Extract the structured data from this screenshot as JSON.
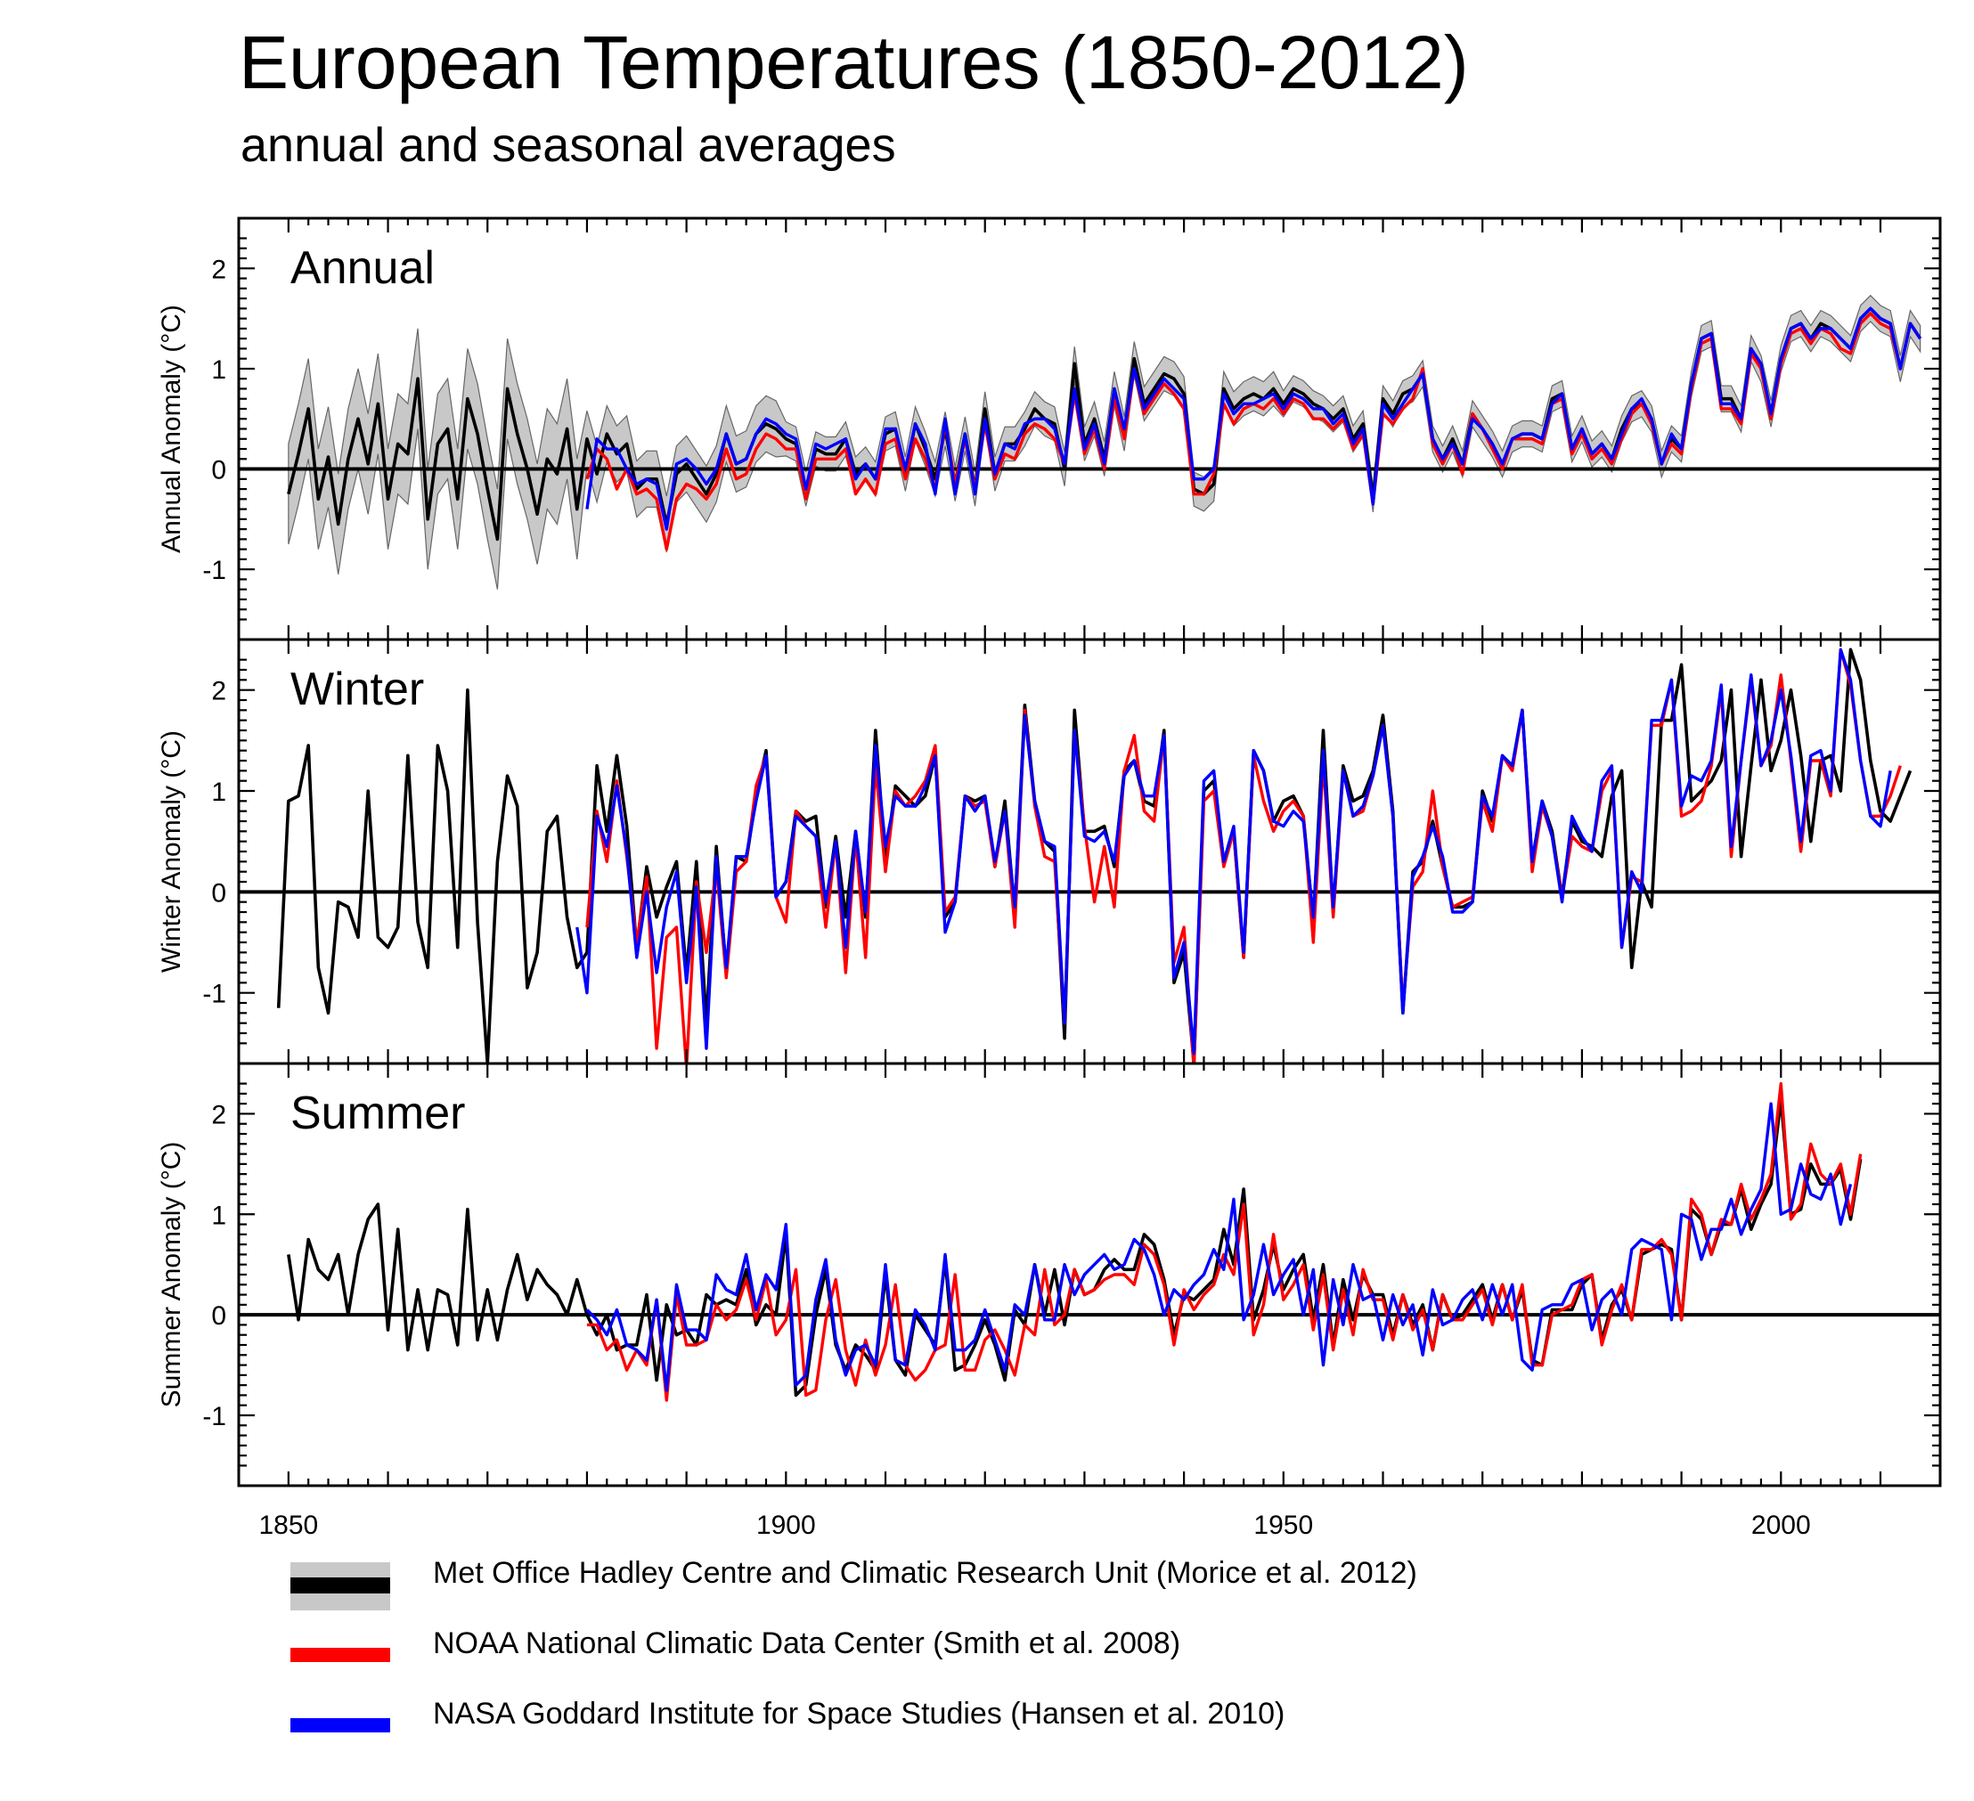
{
  "title": "European Temperatures (1850-2012)",
  "subtitle": "annual and seasonal averages",
  "colors": {
    "hadcrut": "#000000",
    "hadcrut_band": "#c8c8c8",
    "noaa": "#ff0000",
    "nasa": "#0000ff"
  },
  "legend": [
    {
      "key": "hadcrut",
      "label": "Met Office Hadley Centre and Climatic Research Unit (Morice et al. 2012)"
    },
    {
      "key": "noaa",
      "label": "NOAA National Climatic Data Center (Smith et al. 2008)"
    },
    {
      "key": "nasa",
      "label": "NASA Goddard Institute for Space Studies (Hansen et al. 2010)"
    }
  ],
  "chart_data": [
    {
      "type": "line",
      "panel": "Annual",
      "ylabel": "Annual Anomaly (°C)",
      "xlim": [
        1850,
        2012
      ],
      "ylim": [
        -1.7,
        2.5
      ],
      "xticks": [
        1850,
        1900,
        1950,
        2000
      ],
      "yticks": [
        -1,
        0,
        1,
        2
      ],
      "hadcrut_start": 1850,
      "hadcrut": [
        -0.25,
        0.15,
        0.6,
        -0.3,
        0.12,
        -0.55,
        0.1,
        0.5,
        0.05,
        0.65,
        -0.3,
        0.25,
        0.15,
        0.9,
        -0.5,
        0.25,
        0.4,
        -0.3,
        0.7,
        0.35,
        -0.2,
        -0.7,
        0.8,
        0.35,
        0.0,
        -0.45,
        0.1,
        -0.05,
        0.4,
        -0.4,
        0.3,
        -0.05,
        0.35,
        0.15,
        0.25,
        -0.2,
        -0.1,
        -0.1,
        -0.55,
        -0.05,
        0.05,
        -0.1,
        -0.25,
        -0.05,
        0.35,
        0.05,
        0.1,
        0.35,
        0.45,
        0.4,
        0.3,
        0.25,
        -0.2,
        0.2,
        0.15,
        0.15,
        0.3,
        -0.05,
        0.05,
        -0.1,
        0.35,
        0.4,
        -0.05,
        0.45,
        0.2,
        -0.1,
        0.4,
        -0.15,
        0.35,
        -0.2,
        0.6,
        -0.05,
        0.25,
        0.25,
        0.4,
        0.6,
        0.5,
        0.45,
        0.0,
        1.05,
        0.25,
        0.5,
        0.1,
        0.8,
        0.35,
        1.1,
        0.65,
        0.8,
        0.95,
        0.9,
        0.75,
        -0.2,
        -0.25,
        -0.15,
        0.8,
        0.6,
        0.7,
        0.75,
        0.7,
        0.8,
        0.65,
        0.8,
        0.75,
        0.65,
        0.6,
        0.5,
        0.6,
        0.3,
        0.45,
        -0.3,
        0.7,
        0.55,
        0.75,
        0.8,
        0.95,
        0.3,
        0.1,
        0.3,
        0.05,
        0.55,
        0.4,
        0.25,
        0.05,
        0.3,
        0.35,
        0.35,
        0.3,
        0.7,
        0.75,
        0.2,
        0.4,
        0.15,
        0.25,
        0.1,
        0.4,
        0.6,
        0.65,
        0.5,
        0.05,
        0.3,
        0.2,
        0.85,
        1.3,
        1.35,
        0.7,
        0.7,
        0.5,
        1.2,
        1.0,
        0.55,
        1.1,
        1.4,
        1.45,
        1.3,
        1.45,
        1.4,
        1.3,
        1.2,
        1.5,
        1.6,
        1.5,
        1.45,
        1.0,
        1.45,
        1.3
      ],
      "noaa_start": 1880,
      "noaa": [
        -0.1,
        0.2,
        0.1,
        -0.2,
        0.0,
        -0.25,
        -0.2,
        -0.3,
        -0.8,
        -0.3,
        -0.15,
        -0.2,
        -0.3,
        -0.15,
        0.2,
        -0.1,
        -0.05,
        0.2,
        0.35,
        0.3,
        0.2,
        0.2,
        -0.3,
        0.1,
        0.1,
        0.1,
        0.2,
        -0.25,
        -0.1,
        -0.25,
        0.25,
        0.3,
        -0.1,
        0.3,
        0.1,
        -0.2,
        0.45,
        -0.15,
        0.3,
        -0.2,
        0.45,
        -0.1,
        0.15,
        0.1,
        0.35,
        0.45,
        0.4,
        0.3,
        0.05,
        0.75,
        0.15,
        0.4,
        0.0,
        0.7,
        0.3,
        1.0,
        0.55,
        0.7,
        0.85,
        0.75,
        0.6,
        -0.25,
        -0.25,
        -0.05,
        0.65,
        0.45,
        0.6,
        0.65,
        0.6,
        0.7,
        0.55,
        0.7,
        0.65,
        0.5,
        0.5,
        0.4,
        0.5,
        0.2,
        0.35,
        -0.35,
        0.55,
        0.45,
        0.6,
        0.7,
        1.0,
        0.25,
        0.05,
        0.25,
        -0.05,
        0.55,
        0.4,
        0.2,
        0.0,
        0.3,
        0.3,
        0.3,
        0.25,
        0.65,
        0.7,
        0.15,
        0.35,
        0.1,
        0.2,
        0.05,
        0.3,
        0.55,
        0.65,
        0.45,
        0.05,
        0.25,
        0.15,
        0.8,
        1.25,
        1.3,
        0.6,
        0.6,
        0.45,
        1.15,
        1.0,
        0.5,
        1.05,
        1.35,
        1.4,
        1.25,
        1.4,
        1.35,
        1.2,
        1.15,
        1.45,
        1.55,
        1.45,
        1.4,
        1.0,
        1.45,
        1.3
      ],
      "nasa_start": 1880,
      "nasa": [
        -0.4,
        0.3,
        0.2,
        0.2,
        0.0,
        -0.15,
        -0.1,
        -0.15,
        -0.6,
        0.05,
        0.1,
        0.0,
        -0.15,
        0.0,
        0.35,
        0.05,
        0.1,
        0.35,
        0.5,
        0.45,
        0.35,
        0.3,
        -0.2,
        0.25,
        0.2,
        0.25,
        0.3,
        -0.1,
        0.05,
        -0.1,
        0.4,
        0.4,
        0.0,
        0.45,
        0.25,
        -0.25,
        0.5,
        -0.25,
        0.35,
        -0.25,
        0.5,
        -0.05,
        0.25,
        0.2,
        0.45,
        0.5,
        0.5,
        0.4,
        0.05,
        0.8,
        0.2,
        0.45,
        0.05,
        0.8,
        0.4,
        1.0,
        0.6,
        0.75,
        0.9,
        0.8,
        0.7,
        -0.1,
        -0.1,
        0.0,
        0.75,
        0.55,
        0.65,
        0.65,
        0.7,
        0.75,
        0.6,
        0.75,
        0.7,
        0.6,
        0.6,
        0.45,
        0.55,
        0.25,
        0.4,
        -0.35,
        0.65,
        0.5,
        0.65,
        0.8,
        0.95,
        0.3,
        0.1,
        0.25,
        0.05,
        0.5,
        0.4,
        0.25,
        0.05,
        0.3,
        0.35,
        0.35,
        0.3,
        0.65,
        0.75,
        0.2,
        0.4,
        0.15,
        0.25,
        0.1,
        0.35,
        0.6,
        0.7,
        0.5,
        0.05,
        0.35,
        0.2,
        0.85,
        1.3,
        1.35,
        0.65,
        0.65,
        0.5,
        1.2,
        1.05,
        0.55,
        1.1,
        1.4,
        1.45,
        1.3,
        1.4,
        1.4,
        1.3,
        1.2,
        1.5,
        1.6,
        1.5,
        1.45,
        1.0,
        1.45,
        1.3
      ]
    },
    {
      "type": "line",
      "panel": "Winter",
      "ylabel": "Winter Anomaly (°C)",
      "xlim": [
        1850,
        2012
      ],
      "ylim": [
        -1.7,
        2.5
      ],
      "xticks": [
        1850,
        1900,
        1950,
        2000
      ],
      "yticks": [
        -1,
        0,
        1,
        2
      ],
      "hadcrut_start": 1849,
      "hadcrut": [
        -1.15,
        0.9,
        0.95,
        1.45,
        -0.75,
        -1.2,
        -0.1,
        -0.15,
        -0.45,
        1.0,
        -0.45,
        -0.55,
        -0.35,
        1.35,
        -0.3,
        -0.75,
        1.45,
        1.0,
        -0.55,
        2.0,
        -0.3,
        -1.7,
        0.3,
        1.15,
        0.85,
        -0.95,
        -0.6,
        0.6,
        0.75,
        -0.25,
        -0.75,
        -0.6,
        1.25,
        0.6,
        1.35,
        0.65,
        -0.55,
        0.25,
        -0.25,
        0.05,
        0.3,
        -0.8,
        0.3,
        -1.3,
        0.45,
        -0.8,
        0.35,
        0.3,
        0.95,
        1.4,
        -0.05,
        0.1,
        0.8,
        0.7,
        0.75,
        -0.15,
        0.55,
        -0.25,
        0.6,
        -0.25,
        1.6,
        0.3,
        1.05,
        0.95,
        0.85,
        0.95,
        1.35,
        -0.25,
        -0.1,
        0.95,
        0.9,
        0.95,
        0.25,
        0.9,
        -0.2,
        1.85,
        0.9,
        0.5,
        0.4,
        -1.45,
        1.8,
        0.6,
        0.6,
        0.65,
        0.25,
        1.2,
        1.3,
        0.9,
        0.85,
        1.6,
        -0.9,
        -0.6,
        -1.7,
        1.0,
        1.1,
        0.3,
        0.6,
        -0.65,
        1.4,
        1.2,
        0.7,
        0.9,
        0.95,
        0.75,
        -0.3,
        1.6,
        -0.2,
        1.25,
        0.9,
        0.95,
        1.2,
        1.75,
        0.8,
        -1.2,
        0.2,
        0.3,
        0.7,
        0.25,
        -0.15,
        -0.15,
        -0.1,
        1.0,
        0.7,
        1.35,
        1.25,
        1.8,
        0.3,
        0.9,
        0.6,
        -0.05,
        0.7,
        0.5,
        0.45,
        0.35,
        0.95,
        1.2,
        -0.75,
        0.1,
        -0.15,
        1.7,
        1.7,
        2.25,
        0.9,
        1.0,
        1.1,
        1.3,
        2.0,
        0.35,
        1.25,
        2.1,
        1.2,
        1.5,
        2.0,
        1.35,
        0.5,
        1.3,
        1.35,
        1.0,
        2.4,
        2.1,
        1.3,
        0.8,
        0.7,
        0.95,
        1.2
      ],
      "noaa_start": 1880,
      "noaa": [
        -0.35,
        0.8,
        0.3,
        1.1,
        0.35,
        -0.5,
        0.15,
        -1.55,
        -0.45,
        -0.35,
        -1.75,
        0.1,
        -0.6,
        0.25,
        -0.85,
        0.2,
        0.3,
        1.05,
        1.35,
        -0.05,
        -0.3,
        0.8,
        0.65,
        0.55,
        -0.35,
        0.5,
        -0.8,
        0.55,
        -0.65,
        1.25,
        0.2,
        1.0,
        0.85,
        0.95,
        1.1,
        1.45,
        -0.2,
        -0.05,
        0.95,
        0.85,
        0.9,
        0.25,
        0.8,
        -0.35,
        1.8,
        0.85,
        0.35,
        0.3,
        -1.3,
        1.6,
        0.65,
        -0.1,
        0.45,
        -0.15,
        1.2,
        1.55,
        0.8,
        0.7,
        1.55,
        -0.7,
        -0.35,
        -1.75,
        0.9,
        1.0,
        0.25,
        0.6,
        -0.65,
        1.35,
        0.9,
        0.6,
        0.8,
        0.9,
        0.75,
        -0.5,
        1.3,
        -0.25,
        1.2,
        0.75,
        0.8,
        1.15,
        1.65,
        0.75,
        -1.15,
        0.05,
        0.2,
        1.0,
        0.25,
        -0.15,
        -0.1,
        -0.05,
        0.9,
        0.6,
        1.35,
        1.2,
        1.8,
        0.2,
        0.85,
        0.55,
        -0.05,
        0.55,
        0.45,
        0.4,
        1.0,
        1.2,
        -0.55,
        0.15,
        0.1,
        1.65,
        1.65,
        2.1,
        0.75,
        0.8,
        0.9,
        1.25,
        2.0,
        0.35,
        1.3,
        2.1,
        1.25,
        1.45,
        2.15,
        1.3,
        0.4,
        1.3,
        1.3,
        0.95,
        2.4,
        2.05,
        1.3,
        0.75,
        0.75,
        0.95,
        1.25
      ],
      "nasa_start": 1879,
      "nasa": [
        -0.35,
        -1.0,
        0.75,
        0.45,
        1.05,
        0.4,
        -0.65,
        0.0,
        -0.8,
        -0.15,
        0.2,
        -0.9,
        0.05,
        -1.55,
        0.35,
        -0.75,
        0.35,
        0.35,
        0.9,
        1.35,
        -0.05,
        0.1,
        0.75,
        0.65,
        0.55,
        -0.1,
        0.5,
        -0.55,
        0.6,
        -0.2,
        1.45,
        0.45,
        0.95,
        0.85,
        0.85,
        1.05,
        1.35,
        -0.4,
        -0.1,
        0.95,
        0.8,
        0.95,
        0.3,
        0.8,
        -0.15,
        1.75,
        0.9,
        0.5,
        0.45,
        -1.3,
        1.6,
        0.55,
        0.5,
        0.6,
        0.3,
        1.15,
        1.3,
        0.95,
        0.95,
        1.55,
        -0.85,
        -0.5,
        -1.6,
        1.1,
        1.2,
        0.3,
        0.65,
        -0.6,
        1.4,
        1.2,
        0.7,
        0.65,
        0.8,
        0.7,
        -0.25,
        1.4,
        -0.15,
        1.2,
        0.75,
        0.85,
        1.15,
        1.65,
        0.75,
        -1.2,
        0.15,
        0.35,
        0.65,
        0.35,
        -0.2,
        -0.2,
        -0.1,
        0.95,
        0.75,
        1.35,
        1.25,
        1.8,
        0.3,
        0.9,
        0.55,
        -0.1,
        0.75,
        0.55,
        0.4,
        1.1,
        1.25,
        -0.55,
        0.2,
        0.0,
        1.7,
        1.7,
        2.1,
        0.85,
        1.15,
        1.1,
        1.3,
        2.05,
        0.45,
        1.3,
        2.15,
        1.25,
        1.5,
        2.0,
        1.35,
        0.5,
        1.35,
        1.4,
        1.0,
        2.4,
        2.1,
        1.3,
        0.75,
        0.65,
        1.2
      ]
    },
    {
      "type": "line",
      "panel": "Summer",
      "ylabel": "Summer Anomaly (°C)",
      "xlim": [
        1850,
        2012
      ],
      "ylim": [
        -1.7,
        2.5
      ],
      "xticks": [
        1850,
        1900,
        1950,
        2000
      ],
      "yticks": [
        -1,
        0,
        1,
        2
      ],
      "hadcrut_start": 1850,
      "hadcrut": [
        0.6,
        -0.05,
        0.75,
        0.45,
        0.35,
        0.6,
        0.0,
        0.6,
        0.95,
        1.1,
        -0.15,
        0.85,
        -0.35,
        0.25,
        -0.35,
        0.25,
        0.2,
        -0.3,
        1.05,
        -0.25,
        0.25,
        -0.25,
        0.25,
        0.6,
        0.15,
        0.45,
        0.3,
        0.2,
        0.0,
        0.35,
        0.0,
        -0.2,
        0.0,
        -0.35,
        -0.3,
        -0.3,
        0.2,
        -0.65,
        0.1,
        -0.2,
        -0.15,
        -0.3,
        0.2,
        0.1,
        0.15,
        0.1,
        0.45,
        -0.1,
        0.1,
        0.0,
        0.8,
        -0.8,
        -0.7,
        0.0,
        0.45,
        -0.3,
        -0.55,
        -0.3,
        -0.4,
        -0.55,
        0.4,
        -0.45,
        -0.6,
        0.0,
        -0.15,
        -0.3,
        0.55,
        -0.55,
        -0.5,
        -0.3,
        -0.05,
        -0.3,
        -0.65,
        0.05,
        -0.1,
        0.5,
        0.0,
        0.45,
        -0.1,
        0.45,
        0.2,
        0.25,
        0.45,
        0.55,
        0.45,
        0.45,
        0.8,
        0.7,
        0.35,
        -0.2,
        0.2,
        0.15,
        0.25,
        0.35,
        0.85,
        0.5,
        1.25,
        -0.05,
        0.25,
        0.7,
        0.25,
        0.45,
        0.6,
        -0.05,
        0.5,
        -0.3,
        0.35,
        -0.05,
        0.4,
        0.2,
        0.2,
        -0.2,
        0.2,
        -0.1,
        0.1,
        -0.35,
        0.2,
        -0.05,
        0.0,
        0.15,
        0.3,
        -0.05,
        0.3,
        -0.05,
        0.25,
        -0.45,
        -0.5,
        0.05,
        0.05,
        0.05,
        0.3,
        0.4,
        -0.25,
        0.1,
        0.25,
        -0.05,
        0.6,
        0.65,
        0.7,
        0.65,
        -0.05,
        1.05,
        0.95,
        0.6,
        0.9,
        0.9,
        1.25,
        0.85,
        1.1,
        1.3,
        2.15,
        1.0,
        1.05,
        1.5,
        1.3,
        1.3,
        1.45,
        0.95,
        1.55
      ],
      "noaa_start": 1880,
      "noaa": [
        -0.1,
        -0.1,
        -0.35,
        -0.25,
        -0.55,
        -0.35,
        -0.5,
        0.15,
        -0.85,
        0.2,
        -0.3,
        -0.3,
        -0.25,
        0.1,
        -0.05,
        0.05,
        0.35,
        -0.05,
        0.35,
        -0.2,
        -0.05,
        0.45,
        -0.8,
        -0.75,
        -0.05,
        0.35,
        -0.35,
        -0.7,
        -0.25,
        -0.6,
        -0.3,
        0.3,
        -0.5,
        -0.65,
        -0.55,
        -0.35,
        -0.3,
        0.4,
        -0.55,
        -0.55,
        -0.25,
        -0.15,
        -0.35,
        -0.6,
        -0.1,
        -0.2,
        0.45,
        -0.1,
        0.0,
        0.45,
        0.2,
        0.25,
        0.35,
        0.4,
        0.4,
        0.3,
        0.7,
        0.6,
        0.3,
        -0.3,
        0.25,
        0.05,
        0.2,
        0.3,
        0.6,
        0.4,
        1.1,
        -0.2,
        0.1,
        0.8,
        0.15,
        0.3,
        0.5,
        -0.15,
        0.4,
        -0.35,
        0.25,
        -0.2,
        0.45,
        0.15,
        0.15,
        -0.25,
        0.2,
        -0.15,
        0.05,
        -0.35,
        0.2,
        -0.05,
        -0.05,
        0.1,
        0.25,
        -0.1,
        0.3,
        -0.05,
        0.3,
        -0.5,
        -0.5,
        0.0,
        0.05,
        0.1,
        0.35,
        0.4,
        -0.3,
        0.05,
        0.3,
        -0.05,
        0.65,
        0.65,
        0.75,
        0.6,
        -0.05,
        1.15,
        1.0,
        0.6,
        0.95,
        0.9,
        1.3,
        0.95,
        1.15,
        1.4,
        2.3,
        0.95,
        1.1,
        1.7,
        1.4,
        1.3,
        1.5,
        1.0,
        1.6
      ],
      "nasa_start": 1880,
      "nasa": [
        0.05,
        -0.05,
        -0.2,
        0.05,
        -0.3,
        -0.35,
        -0.45,
        0.15,
        -0.75,
        0.3,
        -0.15,
        -0.15,
        -0.25,
        0.4,
        0.25,
        0.2,
        0.6,
        0.05,
        0.4,
        0.25,
        0.9,
        -0.7,
        -0.6,
        0.15,
        0.55,
        -0.25,
        -0.6,
        -0.35,
        -0.3,
        -0.5,
        0.5,
        -0.45,
        -0.5,
        0.05,
        -0.1,
        -0.35,
        0.6,
        -0.35,
        -0.35,
        -0.25,
        0.05,
        -0.25,
        -0.55,
        0.1,
        0.0,
        0.5,
        -0.05,
        -0.05,
        0.5,
        0.2,
        0.4,
        0.5,
        0.6,
        0.45,
        0.5,
        0.75,
        0.65,
        0.4,
        0.0,
        0.25,
        0.15,
        0.3,
        0.4,
        0.65,
        0.45,
        1.15,
        -0.05,
        0.2,
        0.7,
        0.2,
        0.4,
        0.55,
        0.0,
        0.45,
        -0.5,
        0.35,
        -0.1,
        0.5,
        0.15,
        0.2,
        -0.25,
        0.2,
        -0.1,
        0.1,
        -0.4,
        0.25,
        -0.1,
        -0.05,
        0.15,
        0.25,
        -0.05,
        0.3,
        0.0,
        0.3,
        -0.45,
        -0.55,
        0.05,
        0.1,
        0.1,
        0.3,
        0.35,
        -0.15,
        0.15,
        0.25,
        0.0,
        0.65,
        0.75,
        0.7,
        0.65,
        -0.05,
        1.0,
        0.95,
        0.55,
        0.85,
        0.85,
        1.15,
        0.8,
        1.05,
        1.25,
        2.1,
        1.0,
        1.05,
        1.5,
        1.2,
        1.15,
        1.4,
        0.9,
        1.3
      ]
    }
  ]
}
